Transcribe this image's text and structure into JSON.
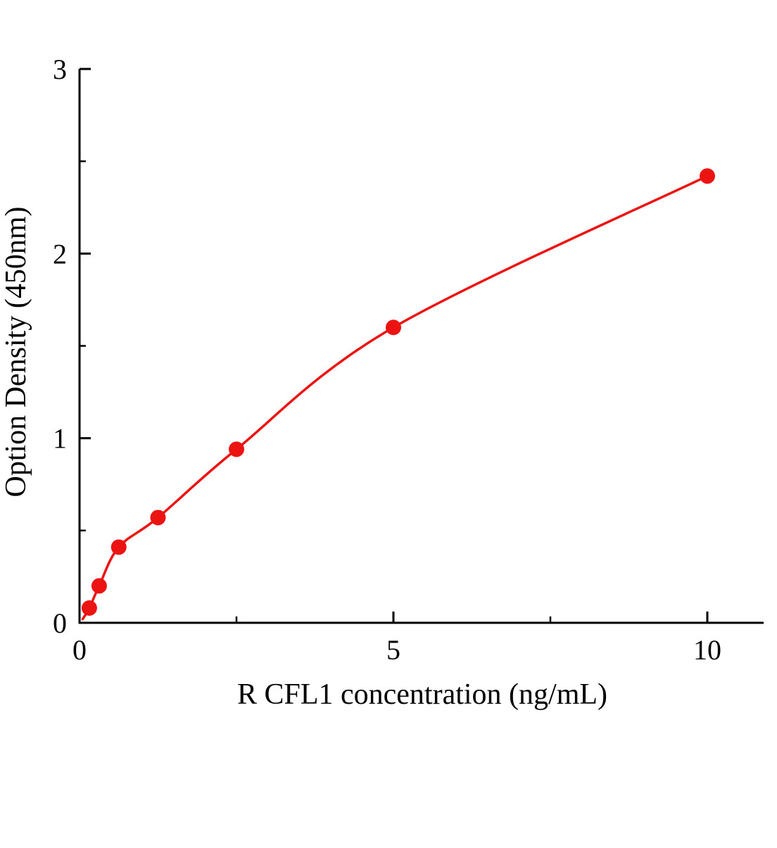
{
  "chart_data": {
    "type": "scatter",
    "title": "",
    "xlabel": "R CFL1 concentration（ng/mL）",
    "ylabel": "Option Density（450nm）",
    "x": [
      0.156,
      0.313,
      0.625,
      1.25,
      2.5,
      5,
      10
    ],
    "y": [
      0.08,
      0.2,
      0.41,
      0.57,
      0.94,
      1.6,
      2.42
    ],
    "curve_start": [
      0.05,
      0.02
    ],
    "xlim": [
      0,
      10.9
    ],
    "ylim": [
      0,
      3
    ],
    "xticks": [
      0,
      5,
      10
    ],
    "xticks_minor": [
      2.5,
      7.5
    ],
    "yticks": [
      0,
      1,
      2,
      3
    ],
    "yticks_minor": [
      0.5,
      1.5,
      2.5
    ],
    "grid": false,
    "legend": null,
    "line_color": "#ec1313",
    "marker_color": "#ec1313",
    "axis_color": "#000000",
    "marker_radius": 11
  }
}
